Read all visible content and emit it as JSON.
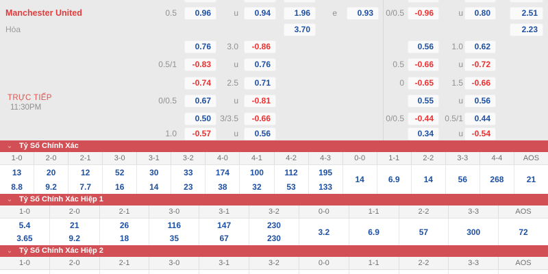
{
  "colors": {
    "bar_red": "#d25055",
    "odds_blue": "#1d4fa3",
    "odds_red": "#ee2f2f",
    "label_gray": "#909090",
    "team_red": "#e03c3c",
    "live_red": "#e0554f"
  },
  "icons": {
    "chevron_down": "⌄"
  },
  "match": {
    "home_team": "Manchester United",
    "draw_label": "Hòa",
    "live_label": "TRỰC TIẾP",
    "time": "11:30PM"
  },
  "odds_rows": [
    [
      {
        "s": "L1L",
        "t": "0.5",
        "c": "g"
      },
      {
        "s": "L1B",
        "t": "0.96",
        "c": "b"
      },
      {
        "s": "L2L",
        "t": "u",
        "c": "g"
      },
      {
        "s": "L2B",
        "t": "0.94",
        "c": "b"
      },
      {
        "s": "XB1",
        "t": "1.96",
        "c": "b"
      },
      {
        "s": "EL",
        "t": "e",
        "c": "g"
      },
      {
        "s": "XB2",
        "t": "0.93",
        "c": "b"
      },
      {
        "s": "RL1",
        "t": "0/0.5",
        "c": "g"
      },
      {
        "s": "RB1",
        "t": "-0.96",
        "c": "r"
      },
      {
        "s": "RL2",
        "t": "u",
        "c": "g"
      },
      {
        "s": "RB2",
        "t": "0.80",
        "c": "b"
      },
      {
        "s": "RB3",
        "t": "2.51",
        "c": "b"
      }
    ],
    [
      {
        "s": "XB1",
        "t": "3.70",
        "c": "b"
      },
      {
        "s": "RB3",
        "t": "2.23",
        "c": "b"
      }
    ],
    [
      {
        "s": "L1B",
        "t": "0.76",
        "c": "b"
      },
      {
        "s": "L2L",
        "t": "3.0",
        "c": "g"
      },
      {
        "s": "L2B",
        "t": "-0.86",
        "c": "r"
      },
      {
        "s": "RB1",
        "t": "0.56",
        "c": "b"
      },
      {
        "s": "RL2",
        "t": "1.0",
        "c": "g"
      },
      {
        "s": "RB2",
        "t": "0.62",
        "c": "b"
      }
    ],
    [
      {
        "s": "L1L",
        "t": "0.5/1",
        "c": "g"
      },
      {
        "s": "L1B",
        "t": "-0.83",
        "c": "r"
      },
      {
        "s": "L2L",
        "t": "u",
        "c": "g"
      },
      {
        "s": "L2B",
        "t": "0.76",
        "c": "b"
      },
      {
        "s": "RL1",
        "t": "0.5",
        "c": "g"
      },
      {
        "s": "RB1",
        "t": "-0.66",
        "c": "r"
      },
      {
        "s": "RL2",
        "t": "u",
        "c": "g"
      },
      {
        "s": "RB2",
        "t": "-0.72",
        "c": "r"
      }
    ],
    [
      {
        "s": "L1B",
        "t": "-0.74",
        "c": "r"
      },
      {
        "s": "L2L",
        "t": "2.5",
        "c": "g"
      },
      {
        "s": "L2B",
        "t": "0.71",
        "c": "b"
      },
      {
        "s": "RL1",
        "t": "0",
        "c": "g"
      },
      {
        "s": "RB1",
        "t": "-0.65",
        "c": "r"
      },
      {
        "s": "RL2",
        "t": "1.5",
        "c": "g"
      },
      {
        "s": "RB2",
        "t": "-0.66",
        "c": "r"
      }
    ],
    [
      {
        "s": "L1L",
        "t": "0/0.5",
        "c": "g"
      },
      {
        "s": "L1B",
        "t": "0.67",
        "c": "b"
      },
      {
        "s": "L2L",
        "t": "u",
        "c": "g"
      },
      {
        "s": "L2B",
        "t": "-0.81",
        "c": "r"
      },
      {
        "s": "RB1",
        "t": "0.55",
        "c": "b"
      },
      {
        "s": "RL2",
        "t": "u",
        "c": "g"
      },
      {
        "s": "RB2",
        "t": "0.56",
        "c": "b"
      }
    ],
    [
      {
        "s": "L1B",
        "t": "0.50",
        "c": "b"
      },
      {
        "s": "L2L",
        "t": "3/3.5",
        "c": "g"
      },
      {
        "s": "L2B",
        "t": "-0.66",
        "c": "r"
      },
      {
        "s": "RL1",
        "t": "0/0.5",
        "c": "g"
      },
      {
        "s": "RB1",
        "t": "-0.44",
        "c": "r"
      },
      {
        "s": "RL2",
        "t": "0.5/1",
        "c": "g"
      },
      {
        "s": "RB2",
        "t": "0.44",
        "c": "b"
      }
    ],
    [
      {
        "s": "L1L",
        "t": "1.0",
        "c": "g"
      },
      {
        "s": "L1B",
        "t": "-0.57",
        "c": "r"
      },
      {
        "s": "L2L",
        "t": "u",
        "c": "g"
      },
      {
        "s": "L2B",
        "t": "0.56",
        "c": "b"
      },
      {
        "s": "RB1",
        "t": "0.34",
        "c": "b"
      },
      {
        "s": "RL2",
        "t": "u",
        "c": "g"
      },
      {
        "s": "RB2",
        "t": "-0.54",
        "c": "r"
      }
    ]
  ],
  "sections": [
    {
      "title": "Tỷ Số Chính Xác",
      "columns": [
        {
          "h": "1-0",
          "v": [
            "13",
            "8.8"
          ]
        },
        {
          "h": "2-0",
          "v": [
            "20",
            "9.2"
          ]
        },
        {
          "h": "2-1",
          "v": [
            "12",
            "7.7"
          ]
        },
        {
          "h": "3-0",
          "v": [
            "52",
            "16"
          ]
        },
        {
          "h": "3-1",
          "v": [
            "30",
            "14"
          ]
        },
        {
          "h": "3-2",
          "v": [
            "33",
            "23"
          ]
        },
        {
          "h": "4-0",
          "v": [
            "174",
            "38"
          ]
        },
        {
          "h": "4-1",
          "v": [
            "100",
            "32"
          ]
        },
        {
          "h": "4-2",
          "v": [
            "112",
            "53"
          ]
        },
        {
          "h": "4-3",
          "v": [
            "195",
            "133"
          ]
        },
        {
          "h": "0-0",
          "v": [
            "14"
          ]
        },
        {
          "h": "1-1",
          "v": [
            "6.9"
          ]
        },
        {
          "h": "2-2",
          "v": [
            "14"
          ]
        },
        {
          "h": "3-3",
          "v": [
            "56"
          ]
        },
        {
          "h": "4-4",
          "v": [
            "268"
          ]
        },
        {
          "h": "AOS",
          "v": [
            "21"
          ]
        }
      ]
    },
    {
      "title": "Tỷ Số Chính Xác Hiệp 1",
      "columns": [
        {
          "h": "1-0",
          "v": [
            "5.4",
            "3.65"
          ]
        },
        {
          "h": "2-0",
          "v": [
            "21",
            "9.2"
          ]
        },
        {
          "h": "2-1",
          "v": [
            "26",
            "18"
          ]
        },
        {
          "h": "3-0",
          "v": [
            "116",
            "35"
          ]
        },
        {
          "h": "3-1",
          "v": [
            "147",
            "67"
          ]
        },
        {
          "h": "3-2",
          "v": [
            "230",
            "230"
          ]
        },
        {
          "h": "0-0",
          "v": [
            "3.2"
          ]
        },
        {
          "h": "1-1",
          "v": [
            "6.9"
          ]
        },
        {
          "h": "2-2",
          "v": [
            "57"
          ]
        },
        {
          "h": "3-3",
          "v": [
            "300"
          ]
        },
        {
          "h": "AOS",
          "v": [
            "72"
          ]
        }
      ]
    },
    {
      "title": "Tỷ Số Chính Xác Hiệp 2",
      "columns": [
        {
          "h": "1-0",
          "v": []
        },
        {
          "h": "2-0",
          "v": []
        },
        {
          "h": "2-1",
          "v": []
        },
        {
          "h": "3-0",
          "v": []
        },
        {
          "h": "3-1",
          "v": []
        },
        {
          "h": "3-2",
          "v": []
        },
        {
          "h": "0-0",
          "v": []
        },
        {
          "h": "1-1",
          "v": []
        },
        {
          "h": "2-2",
          "v": []
        },
        {
          "h": "3-3",
          "v": []
        },
        {
          "h": "AOS",
          "v": []
        }
      ]
    }
  ]
}
